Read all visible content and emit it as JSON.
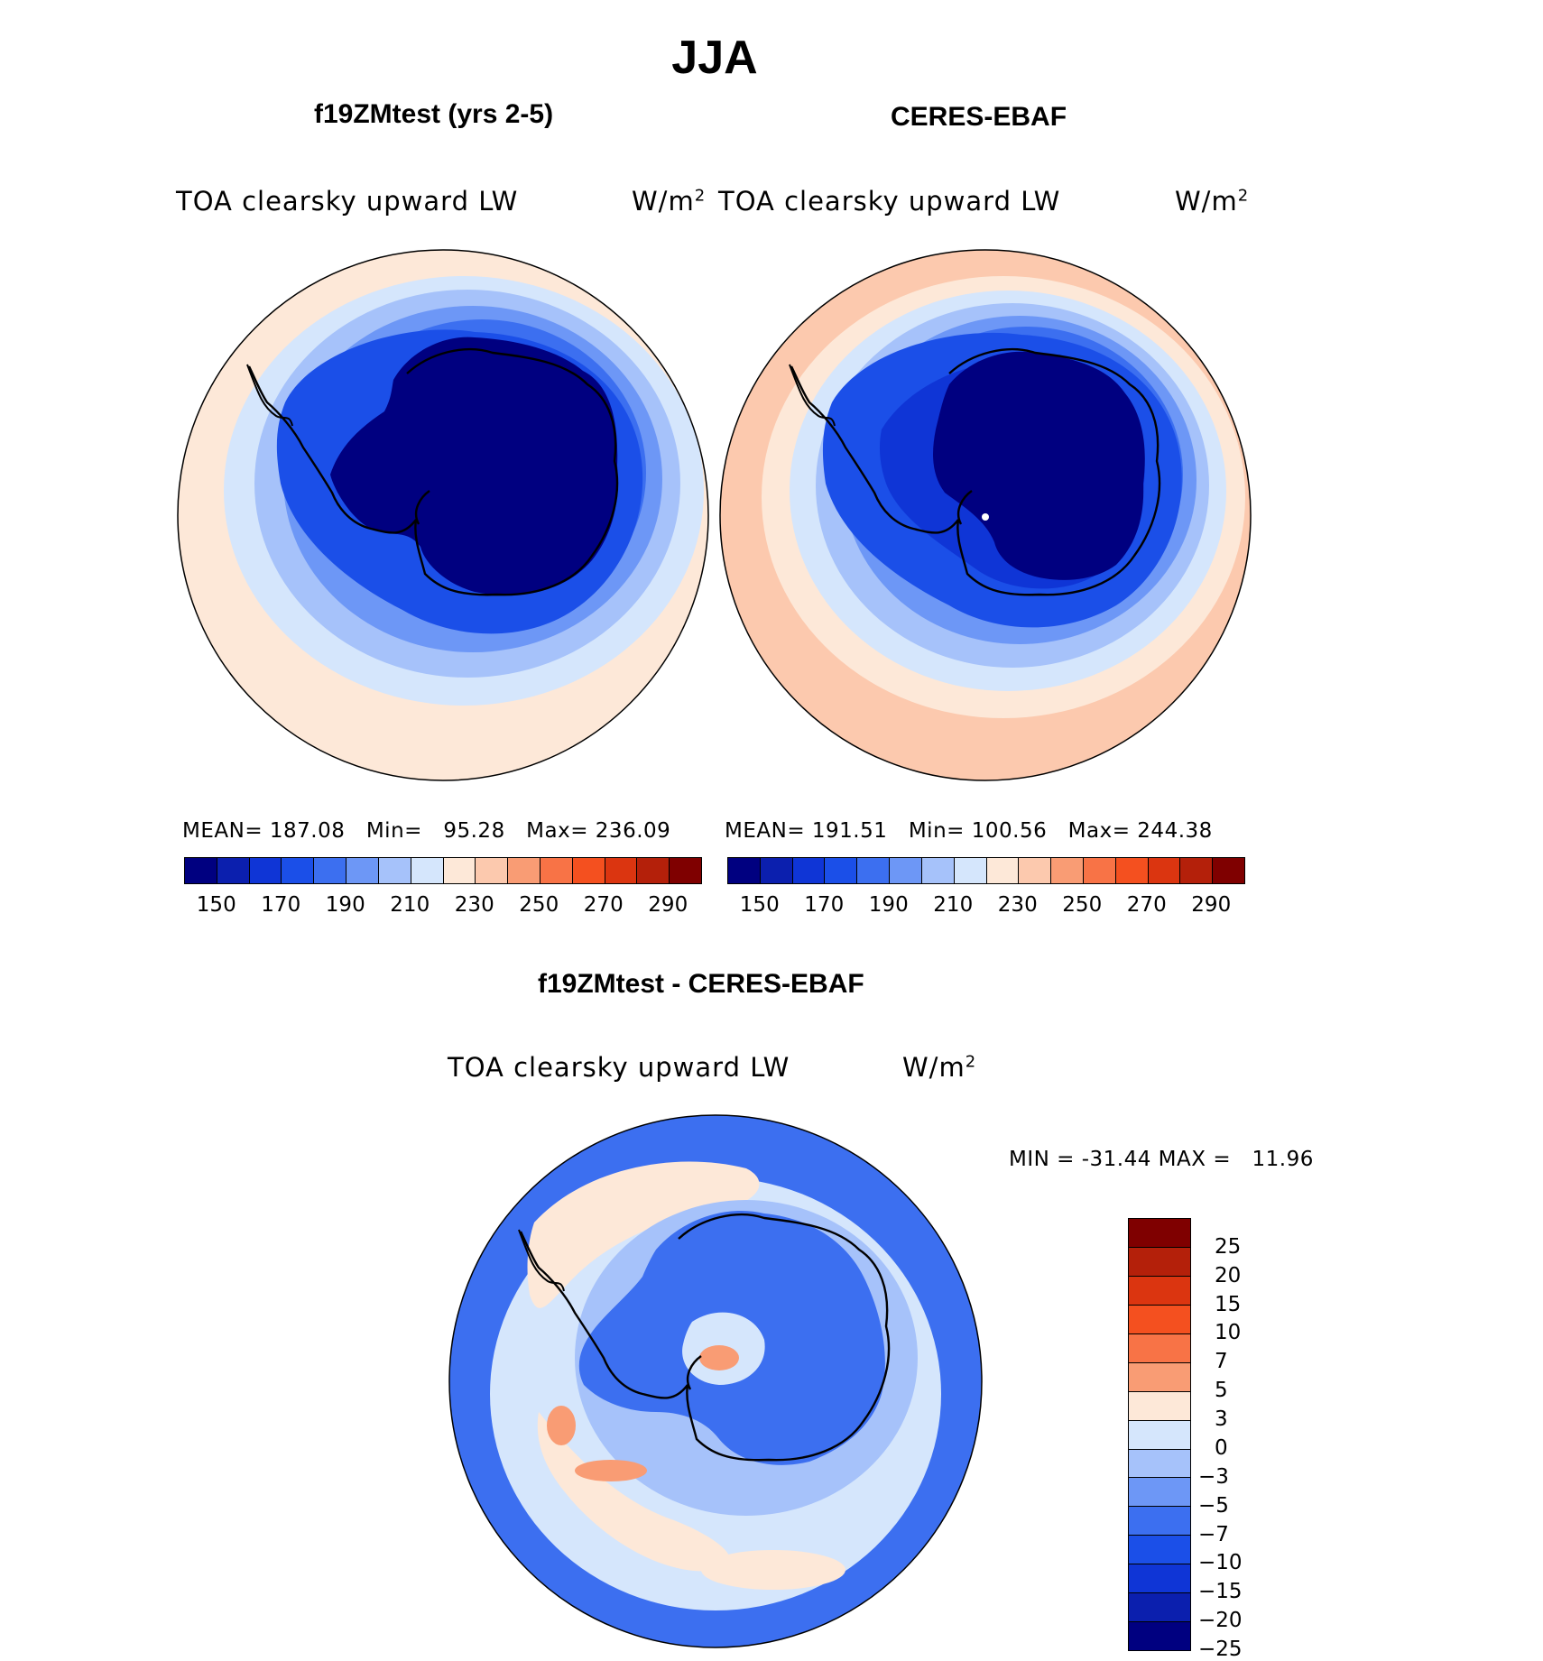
{
  "main_title": "JJA",
  "panels": [
    {
      "id": "model",
      "title": "f19ZMtest (yrs 2-5)",
      "variable": "TOA clearsky upward LW",
      "units": "W/m",
      "units_sup": "2",
      "stats": {
        "mean_label": "MEAN=",
        "mean": "187.08",
        "min_label": "Min=",
        "min": "95.28",
        "max_label": "Max=",
        "max": "236.09"
      }
    },
    {
      "id": "obs",
      "title": "CERES-EBAF",
      "variable": "TOA clearsky upward LW",
      "units": "W/m",
      "units_sup": "2",
      "stats": {
        "mean_label": "MEAN=",
        "mean": "191.51",
        "min_label": "Min=",
        "min": "100.56",
        "max_label": "Max=",
        "max": "244.38"
      }
    }
  ],
  "diff": {
    "title": "f19ZMtest - CERES-EBAF",
    "variable": "TOA clearsky upward LW",
    "units": "W/m",
    "units_sup": "2",
    "minmax": "MIN = -31.44 MAX =   11.96"
  },
  "abs_colorbar": {
    "colors": [
      "#000080",
      "#0b1fae",
      "#0f35d6",
      "#1b4fe8",
      "#3c6ff0",
      "#6d97f6",
      "#a6c2fa",
      "#d5e6fc",
      "#fde8d8",
      "#fcc9ae",
      "#f99c74",
      "#f87346",
      "#f4501f",
      "#db3510",
      "#b4200a",
      "#7f0000"
    ],
    "tick_labels": [
      "150",
      "170",
      "190",
      "210",
      "230",
      "250",
      "270",
      "290"
    ]
  },
  "diff_colorbar": {
    "colors": [
      "#7f0000",
      "#b4200a",
      "#db3510",
      "#f4501f",
      "#f87346",
      "#f99c74",
      "#fde8d8",
      "#d5e6fc",
      "#a6c2fa",
      "#6d97f6",
      "#3c6ff0",
      "#1b4fe8",
      "#0f35d6",
      "#0b1fae",
      "#000080"
    ],
    "tick_labels": [
      "25",
      "20",
      "15",
      "10",
      "7",
      "5",
      "3",
      "0",
      "−3",
      "−5",
      "−7",
      "−10",
      "−15",
      "−20",
      "−25"
    ]
  },
  "map_colors": {
    "ocean_warm": "#fde8d8",
    "ocean_warmer": "#fcc9ae",
    "ring1": "#d5e6fc",
    "ring2": "#a6c2fa",
    "ring3": "#6d97f6",
    "ring4": "#3c6ff0",
    "ring5": "#1b4fe8",
    "ring6": "#0f35d6",
    "interior": "#000080",
    "diff_base": "#3c6ff0",
    "diff_light": "#a6c2fa",
    "diff_pale": "#d5e6fc",
    "diff_warm": "#fde8d8",
    "diff_orange": "#f99c74"
  }
}
